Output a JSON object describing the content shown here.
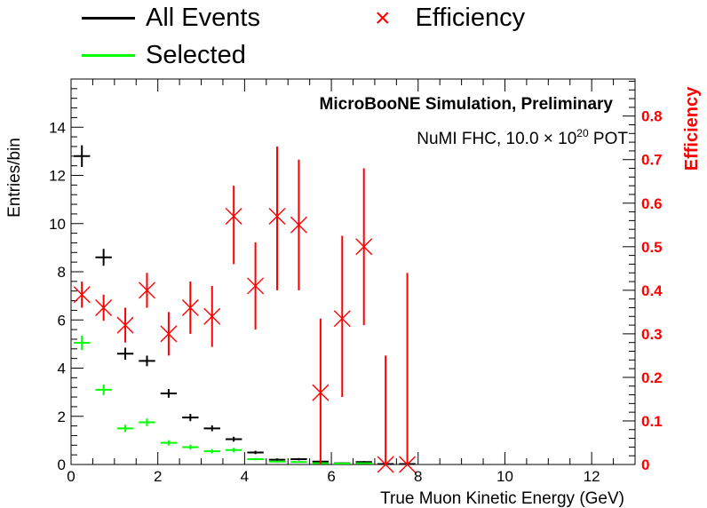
{
  "colors": {
    "all_events": "#000000",
    "selected": "#00ff00",
    "efficiency": "#ff0000",
    "axis": "#000000",
    "right_axis": "#ff0000"
  },
  "legend": {
    "all_events": "All Events",
    "selected": "Selected",
    "efficiency": "Efficiency"
  },
  "annotations": {
    "title": "MicroBooNE Simulation, Preliminary",
    "pot_prefix": "NuMI FHC, 10.0 × 10",
    "pot_exp": "20",
    "pot_suffix": " POT"
  },
  "chart_data": {
    "type": "scatter",
    "xlabel": "True Muon Kinetic Energy (GeV)",
    "ylabel": "Entries/bin",
    "y2label": "Efficiency",
    "xlim": [
      0,
      13
    ],
    "ylim": [
      0,
      16
    ],
    "y2lim": [
      0,
      0.885
    ],
    "xticks": [
      0,
      2,
      4,
      6,
      8,
      10,
      12
    ],
    "yticks": [
      0,
      2,
      4,
      6,
      8,
      10,
      12,
      14
    ],
    "y2ticks": [
      0,
      0.1,
      0.2,
      0.3,
      0.4,
      0.5,
      0.6,
      0.7,
      0.8
    ],
    "bin_width": 0.5,
    "series": [
      {
        "name": "All Events",
        "x": [
          0.25,
          0.75,
          1.25,
          1.75,
          2.25,
          2.75,
          3.25,
          3.75,
          4.25,
          4.75,
          5.25,
          5.75,
          6.25,
          6.75,
          7.25,
          7.75
        ],
        "y": [
          12.8,
          8.6,
          4.6,
          4.3,
          2.95,
          1.95,
          1.5,
          1.05,
          0.5,
          0.2,
          0.22,
          0.12,
          0.05,
          0.1,
          0.02,
          0.02
        ],
        "yerr": [
          0.45,
          0.35,
          0.25,
          0.22,
          0.18,
          0.15,
          0.12,
          0.1,
          0.07,
          0.05,
          0.05,
          0.04,
          0.03,
          0.04,
          0.02,
          0.02
        ]
      },
      {
        "name": "Selected",
        "x": [
          0.25,
          0.75,
          1.25,
          1.75,
          2.25,
          2.75,
          3.25,
          3.75,
          4.25,
          4.75,
          5.25,
          5.75,
          6.25,
          6.75,
          7.25,
          7.75
        ],
        "y": [
          5.05,
          3.1,
          1.5,
          1.75,
          0.9,
          0.72,
          0.55,
          0.6,
          0.22,
          0.12,
          0.1,
          0.05,
          0.04,
          0.05,
          0.0,
          0.0
        ],
        "yerr": [
          0.3,
          0.22,
          0.15,
          0.16,
          0.11,
          0.1,
          0.09,
          0.09,
          0.05,
          0.04,
          0.03,
          0.02,
          0.02,
          0.02,
          0.0,
          0.0
        ]
      },
      {
        "name": "Efficiency",
        "axis": "right",
        "x": [
          0.25,
          0.75,
          1.25,
          1.75,
          2.25,
          2.75,
          3.25,
          3.75,
          4.25,
          4.75,
          5.25,
          5.75,
          6.25,
          6.75,
          7.25,
          7.75
        ],
        "y": [
          0.39,
          0.36,
          0.32,
          0.4,
          0.3,
          0.36,
          0.34,
          0.57,
          0.41,
          0.57,
          0.55,
          0.165,
          0.335,
          0.5,
          0.0,
          0.0
        ],
        "yerr_low": [
          0.03,
          0.03,
          0.04,
          0.04,
          0.05,
          0.06,
          0.07,
          0.11,
          0.1,
          0.17,
          0.15,
          0.17,
          0.18,
          0.18,
          0.0,
          0.0
        ],
        "yerr_high": [
          0.03,
          0.03,
          0.04,
          0.04,
          0.05,
          0.06,
          0.07,
          0.07,
          0.1,
          0.16,
          0.15,
          0.17,
          0.19,
          0.18,
          0.25,
          0.44
        ]
      }
    ]
  }
}
